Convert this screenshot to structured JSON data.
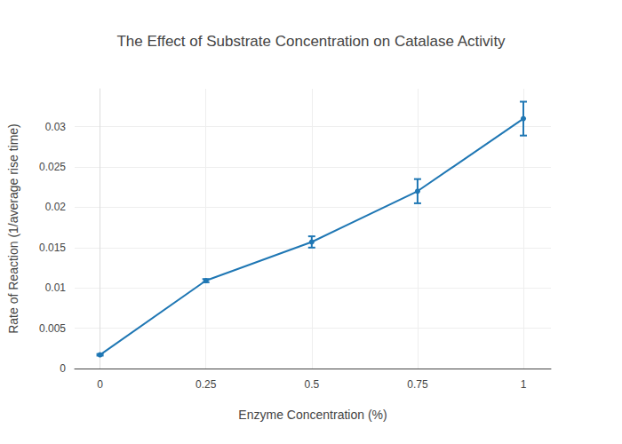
{
  "chart_data": {
    "type": "line",
    "title": "The Effect of Substrate Concentration on Catalase Activity",
    "x_label": "Enzyme Concentration (%)",
    "y_label": "Rate of Reaction (1/average rise time)",
    "x": [
      0,
      0.25,
      0.5,
      0.75,
      1
    ],
    "values": [
      0.0017,
      0.0109,
      0.0157,
      0.022,
      0.031
    ],
    "errors": [
      0.0001,
      0.0002,
      0.0007,
      0.0015,
      0.0021
    ],
    "color": "#1f77b4",
    "marker": "circle",
    "xlim": [
      -0.06,
      1.065
    ],
    "xticks": [
      0,
      0.25,
      0.5,
      0.75,
      1
    ],
    "ylim": [
      0,
      0.0347
    ],
    "yticks": [
      0,
      0.005,
      0.01,
      0.015,
      0.02,
      0.025,
      0.03
    ],
    "grid": true
  }
}
